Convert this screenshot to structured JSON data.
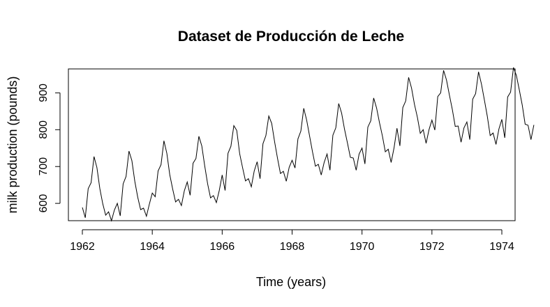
{
  "chart_data": {
    "type": "line",
    "title": "Dataset de Producción de Leche",
    "xlabel": "Time (years)",
    "ylabel": "milk production (pounds)",
    "xlim": [
      1962,
      1974
    ],
    "ylim": [
      553,
      965
    ],
    "x_ticks": [
      1962,
      1964,
      1966,
      1968,
      1970,
      1972,
      1974
    ],
    "y_ticks": [
      600,
      700,
      800,
      900
    ],
    "grid": false,
    "series": [
      {
        "start": 1962,
        "frequency": 12,
        "values": [
          589,
          561,
          640,
          656,
          727,
          697,
          640,
          599,
          568,
          577,
          553,
          582,
          600,
          566,
          653,
          673,
          742,
          716,
          660,
          617,
          583,
          587,
          565,
          598,
          628,
          618,
          688,
          705,
          770,
          736,
          678,
          639,
          604,
          611,
          594,
          634,
          658,
          622,
          709,
          722,
          782,
          756,
          702,
          653,
          615,
          621,
          602,
          635,
          677,
          635,
          736,
          755,
          811,
          798,
          735,
          697,
          661,
          667,
          645,
          688,
          713,
          667,
          762,
          784,
          837,
          817,
          767,
          722,
          681,
          687,
          660,
          698,
          717,
          696,
          775,
          796,
          858,
          826,
          783,
          740,
          701,
          706,
          677,
          711,
          734,
          690,
          785,
          805,
          871,
          845,
          801,
          764,
          725,
          723,
          690,
          734,
          750,
          707,
          807,
          824,
          886,
          859,
          819,
          783,
          740,
          747,
          711,
          751,
          804,
          756,
          860,
          878,
          942,
          913,
          869,
          834,
          790,
          800,
          763,
          800,
          826,
          799,
          890,
          900,
          961,
          935,
          894,
          855,
          809,
          810,
          766,
          805,
          821,
          773,
          883,
          898,
          957,
          924,
          881,
          837,
          784,
          791,
          760,
          802,
          828,
          778,
          889,
          902,
          969,
          947,
          908,
          867,
          815,
          812,
          773,
          813
        ]
      }
    ]
  }
}
